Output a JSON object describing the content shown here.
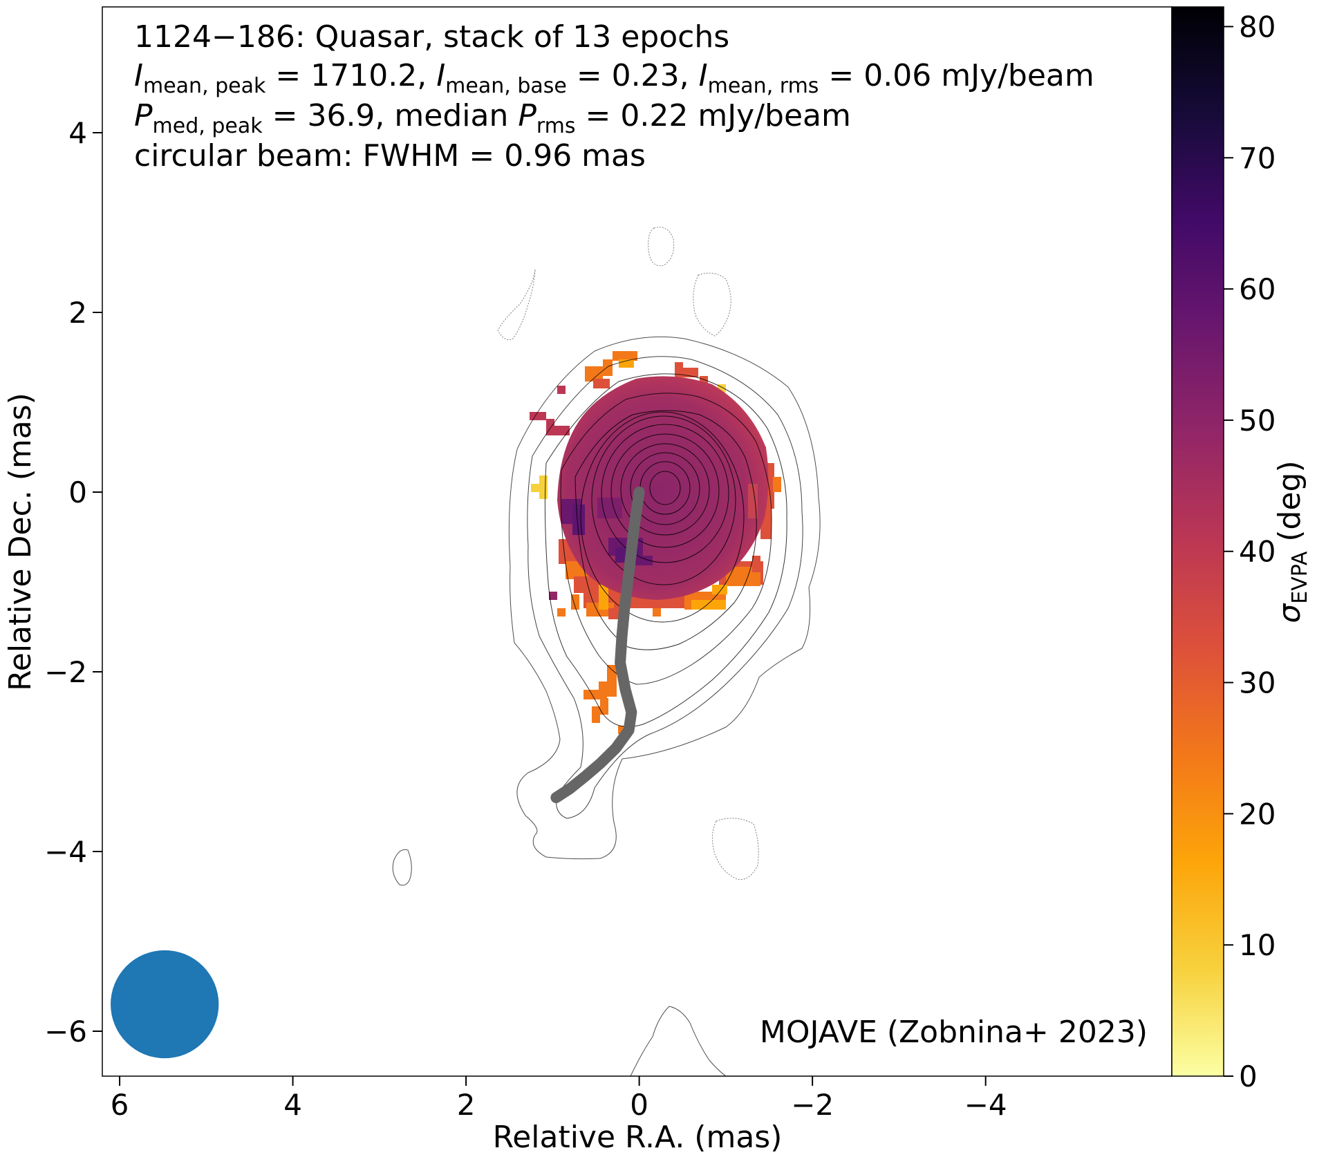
{
  "chart_data": {
    "type": "heatmap",
    "title_lines": {
      "line1": "1124−186: Quasar, stack of 13 epochs",
      "line2": {
        "sym": "I",
        "sub1": "mean, peak",
        "val1": " = 1710.2, ",
        "sub2": "mean, base",
        "val2": " = 0.23, ",
        "sub3": "mean, rms",
        "val3": " = 0.06 mJy/beam"
      },
      "line3": {
        "sym": "P",
        "sub1": "med, peak",
        "val1": " = 36.9, median ",
        "sub2": "rms",
        "val2": " = 0.22 mJy/beam"
      },
      "line4": "circular beam: FWHM = 0.96 mas"
    },
    "annotation": "MOJAVE (Zobnina+ 2023)",
    "xlabel": "Relative R.A. (mas)",
    "ylabel": "Relative Dec. (mas)",
    "xlim": [
      6.2,
      -6.15
    ],
    "ylim": [
      -6.5,
      5.4
    ],
    "x_reversed": true,
    "xticks": [
      6,
      4,
      2,
      0,
      -2,
      -4
    ],
    "xtick_labels": [
      "6",
      "4",
      "2",
      "0",
      "−2",
      "−4"
    ],
    "yticks": [
      4,
      2,
      0,
      -2,
      -4,
      -6
    ],
    "ytick_labels": [
      "4",
      "2",
      "0",
      "−2",
      "−4",
      "−6"
    ],
    "colorbar": {
      "label_sym": "σ",
      "label_sub": "EVPA",
      "label_unit": " (deg)",
      "range": [
        0,
        81.5
      ],
      "ticks": [
        0,
        10,
        20,
        30,
        40,
        50,
        60,
        70,
        80
      ],
      "tick_labels": [
        "0",
        "10",
        "20",
        "30",
        "40",
        "50",
        "60",
        "70",
        "80"
      ],
      "colormap": "inferno_r"
    },
    "beam": {
      "fwhm_mas": 0.96,
      "center": [
        5.48,
        -5.7
      ],
      "color": "#1f77b4"
    },
    "ridgeline": {
      "color": "#666666",
      "points": [
        [
          0.0,
          0.0
        ],
        [
          0.06,
          -0.4
        ],
        [
          0.12,
          -0.9
        ],
        [
          0.17,
          -1.3
        ],
        [
          0.2,
          -1.6
        ],
        [
          0.22,
          -1.9
        ],
        [
          0.16,
          -2.2
        ],
        [
          0.09,
          -2.45
        ],
        [
          0.12,
          -2.65
        ],
        [
          0.27,
          -2.85
        ],
        [
          0.45,
          -3.02
        ],
        [
          0.62,
          -3.16
        ],
        [
          0.8,
          -3.3
        ],
        [
          0.96,
          -3.4
        ]
      ]
    },
    "colormap_stops": [
      "#fcffa4",
      "#f7d13d",
      "#fca50a",
      "#f37819",
      "#dd513a",
      "#bc3754",
      "#932667",
      "#6a176e",
      "#420a68",
      "#160b39",
      "#000004"
    ],
    "colors": {
      "contour": "#000000",
      "axes": "#000000"
    }
  }
}
